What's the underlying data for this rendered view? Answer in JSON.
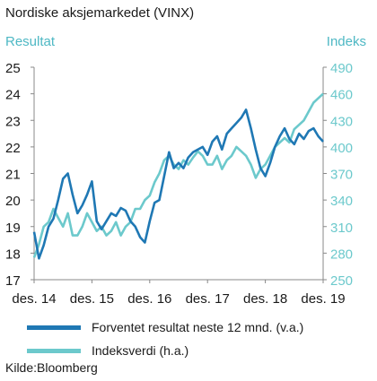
{
  "title": "Nordiske aksjemarkedet (VINX)",
  "left_axis_title": "Resultat",
  "right_axis_title": "Indeks",
  "source": "Kilde:Bloomberg",
  "colors": {
    "forward_earnings": "#1f78b4",
    "index": "#6cc9cc",
    "axis_left_labels": "#1a1a1a",
    "axis_right_labels": "#6cc9cc",
    "axis_titles": "#4eb8c4"
  },
  "chart_data": {
    "type": "line",
    "xlabels": [
      "des. 14",
      "des. 15",
      "des. 16",
      "des. 17",
      "des. 18",
      "des. 19"
    ],
    "xlim": [
      "2014-12",
      "2019-12"
    ],
    "ylim_left": [
      17,
      25
    ],
    "ylim_right": [
      250,
      490
    ],
    "yticks_left": [
      17,
      18,
      19,
      20,
      21,
      22,
      23,
      24,
      25
    ],
    "yticks_right": [
      250,
      280,
      310,
      340,
      370,
      400,
      430,
      460,
      490
    ],
    "grid": false,
    "legend_position": "bottom",
    "series": [
      {
        "name": "Forventet resultat neste 12 mnd. (v.a.)",
        "axis": "left",
        "color": "#1f78b4",
        "x": [
          "2014-12",
          "2015-01",
          "2015-02",
          "2015-03",
          "2015-04",
          "2015-05",
          "2015-06",
          "2015-07",
          "2015-08",
          "2015-09",
          "2015-10",
          "2015-11",
          "2015-12",
          "2016-01",
          "2016-02",
          "2016-03",
          "2016-04",
          "2016-05",
          "2016-06",
          "2016-07",
          "2016-08",
          "2016-09",
          "2016-10",
          "2016-11",
          "2016-12",
          "2017-01",
          "2017-02",
          "2017-03",
          "2017-04",
          "2017-05",
          "2017-06",
          "2017-07",
          "2017-08",
          "2017-09",
          "2017-10",
          "2017-11",
          "2017-12",
          "2018-01",
          "2018-02",
          "2018-03",
          "2018-04",
          "2018-05",
          "2018-06",
          "2018-07",
          "2018-08",
          "2018-09",
          "2018-10",
          "2018-11",
          "2018-12",
          "2019-01",
          "2019-02",
          "2019-03",
          "2019-04",
          "2019-05",
          "2019-06",
          "2019-07",
          "2019-08",
          "2019-09",
          "2019-10",
          "2019-11",
          "2019-12"
        ],
        "values": [
          18.8,
          17.8,
          18.3,
          19.0,
          19.3,
          20.0,
          20.8,
          21.0,
          20.2,
          19.5,
          19.8,
          20.2,
          20.7,
          19.2,
          18.9,
          19.2,
          19.5,
          19.4,
          19.7,
          19.6,
          19.2,
          19.0,
          18.6,
          18.4,
          19.2,
          19.9,
          20.0,
          20.9,
          21.8,
          21.2,
          21.4,
          21.2,
          21.6,
          21.8,
          21.9,
          22.0,
          21.7,
          22.2,
          22.4,
          21.9,
          22.5,
          22.7,
          22.9,
          23.1,
          23.4,
          22.7,
          21.9,
          21.2,
          20.9,
          21.4,
          22.0,
          22.4,
          22.7,
          22.3,
          22.1,
          22.5,
          22.3,
          22.6,
          22.7,
          22.4,
          22.2
        ]
      },
      {
        "name": "Indeksverdi (h.a.)",
        "axis": "right",
        "color": "#6cc9cc",
        "x": [
          "2014-12",
          "2015-01",
          "2015-02",
          "2015-03",
          "2015-04",
          "2015-05",
          "2015-06",
          "2015-07",
          "2015-08",
          "2015-09",
          "2015-10",
          "2015-11",
          "2015-12",
          "2016-01",
          "2016-02",
          "2016-03",
          "2016-04",
          "2016-05",
          "2016-06",
          "2016-07",
          "2016-08",
          "2016-09",
          "2016-10",
          "2016-11",
          "2016-12",
          "2017-01",
          "2017-02",
          "2017-03",
          "2017-04",
          "2017-05",
          "2017-06",
          "2017-07",
          "2017-08",
          "2017-09",
          "2017-10",
          "2017-11",
          "2017-12",
          "2018-01",
          "2018-02",
          "2018-03",
          "2018-04",
          "2018-05",
          "2018-06",
          "2018-07",
          "2018-08",
          "2018-09",
          "2018-10",
          "2018-11",
          "2018-12",
          "2019-01",
          "2019-02",
          "2019-03",
          "2019-04",
          "2019-05",
          "2019-06",
          "2019-07",
          "2019-08",
          "2019-09",
          "2019-10",
          "2019-11",
          "2019-12"
        ],
        "values": [
          275,
          290,
          310,
          315,
          330,
          320,
          310,
          325,
          300,
          300,
          310,
          325,
          315,
          305,
          310,
          300,
          305,
          315,
          300,
          310,
          315,
          330,
          330,
          340,
          345,
          360,
          370,
          385,
          390,
          380,
          375,
          385,
          380,
          388,
          395,
          390,
          380,
          380,
          390,
          375,
          385,
          390,
          400,
          395,
          390,
          380,
          365,
          375,
          380,
          390,
          400,
          405,
          410,
          405,
          420,
          425,
          430,
          440,
          450,
          455,
          460
        ]
      }
    ]
  }
}
